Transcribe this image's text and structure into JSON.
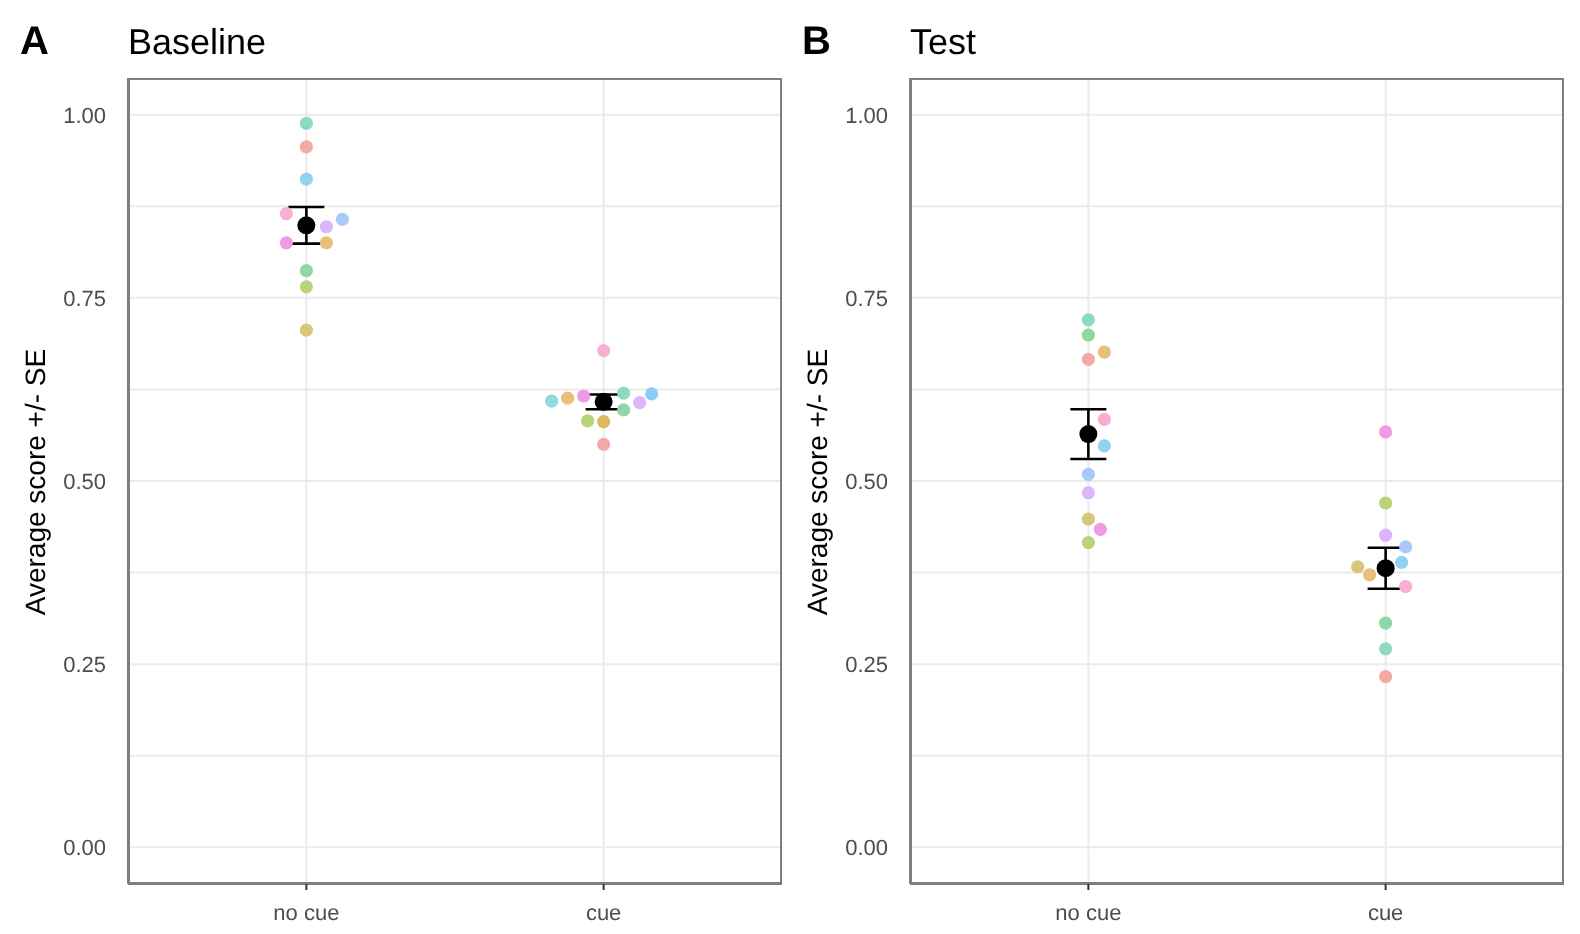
{
  "chart_data": [
    {
      "type": "scatter",
      "title": "Baseline",
      "annotations": [
        "A"
      ],
      "ylabel": "Average score +/- SE",
      "categories": [
        "no cue",
        "cue"
      ],
      "ylim": [
        -0.05,
        1.05
      ],
      "yticks": [
        {
          "value": 0,
          "label": "0.00"
        },
        {
          "value": 0.125,
          "label": null
        },
        {
          "value": 0.25,
          "label": "0.25"
        },
        {
          "value": 0.375,
          "label": null
        },
        {
          "value": 0.5,
          "label": "0.50"
        },
        {
          "value": 0.625,
          "label": null
        },
        {
          "value": 0.75,
          "label": "0.75"
        },
        {
          "value": 0.875,
          "label": null
        },
        {
          "value": 1,
          "label": "1.00"
        }
      ],
      "grid": true,
      "marker": "circle",
      "series": [
        {
          "x": [
            "no cue",
            "no cue",
            "no cue",
            "no cue",
            "no cue",
            "no cue",
            "no cue",
            "no cue",
            "no cue",
            "no cue",
            "no cue",
            "cue",
            "cue",
            "cue",
            "cue",
            "cue",
            "cue",
            "cue",
            "cue",
            "cue",
            "cue",
            "cue"
          ],
          "values": [
            0.956,
            0.988,
            0.912,
            0.847,
            0.865,
            0.857,
            0.825,
            0.825,
            0.787,
            0.765,
            0.706,
            0.678,
            0.62,
            0.597,
            0.582,
            0.55,
            0.616,
            0.607,
            0.613,
            0.619,
            0.581,
            0.609
          ],
          "colors": [
            "#f3a9a4",
            "#8fd9c1",
            "#8fd3ef",
            "#dcb6fb",
            "#f7afd3",
            "#a9c9fb",
            "#e9bf7a",
            "#f09ae6",
            "#8fd7a4",
            "#b7d47a",
            "#d6c77a",
            "#f7afd3",
            "#8fd9c1",
            "#8fd7a4",
            "#b7d47a",
            "#f3a9a4",
            "#f09ae6",
            "#dcb6fb",
            "#e9bf7a",
            "#8fcbf5",
            "#dfb85e",
            "#8fdade"
          ]
        },
        {
          "x": [
            "no cue",
            "cue"
          ],
          "values": [
            0.849,
            0.608
          ],
          "errors": [
            0.025,
            0.01
          ],
          "color": "#000000"
        }
      ]
    },
    {
      "type": "scatter",
      "title": "Test",
      "annotations": [
        "B"
      ],
      "ylabel": "Average score +/- SE",
      "categories": [
        "no cue",
        "cue"
      ],
      "ylim": [
        -0.05,
        1.05
      ],
      "yticks": [
        {
          "value": 0,
          "label": "0.00"
        },
        {
          "value": 0.125,
          "label": null
        },
        {
          "value": 0.25,
          "label": "0.25"
        },
        {
          "value": 0.375,
          "label": null
        },
        {
          "value": 0.5,
          "label": "0.50"
        },
        {
          "value": 0.625,
          "label": null
        },
        {
          "value": 0.75,
          "label": "0.75"
        },
        {
          "value": 0.875,
          "label": null
        },
        {
          "value": 1,
          "label": "1.00"
        }
      ],
      "grid": true,
      "marker": "circle",
      "series": [
        {
          "x": [
            "no cue",
            "no cue",
            "no cue",
            "no cue",
            "no cue",
            "no cue",
            "no cue",
            "no cue",
            "no cue",
            "no cue",
            "no cue",
            "cue",
            "cue",
            "cue",
            "cue",
            "cue",
            "cue",
            "cue",
            "cue",
            "cue",
            "cue",
            "cue"
          ],
          "values": [
            0.699,
            0.666,
            0.676,
            0.72,
            0.584,
            0.548,
            0.509,
            0.484,
            0.448,
            0.434,
            0.416,
            0.567,
            0.47,
            0.426,
            0.41,
            0.389,
            0.372,
            0.383,
            0.356,
            0.306,
            0.271,
            0.233
          ],
          "colors": [
            "#8fd7a4",
            "#f3a9a4",
            "#e9bf7a",
            "#8fd9c1",
            "#f7afd3",
            "#8fd3ef",
            "#a9c9fb",
            "#dcb6fb",
            "#d6c77a",
            "#f09ae6",
            "#b7d47a",
            "#f09ae6",
            "#b7d47a",
            "#dcb6fb",
            "#a9c9fb",
            "#8fd3ef",
            "#e9bf7a",
            "#d6c77a",
            "#f7afd3",
            "#8fd7a4",
            "#8fd9c1",
            "#f3a9a4"
          ]
        },
        {
          "x": [
            "no cue",
            "cue"
          ],
          "values": [
            0.564,
            0.381
          ],
          "errors": [
            0.034,
            0.028
          ],
          "color": "#000000"
        }
      ]
    }
  ]
}
